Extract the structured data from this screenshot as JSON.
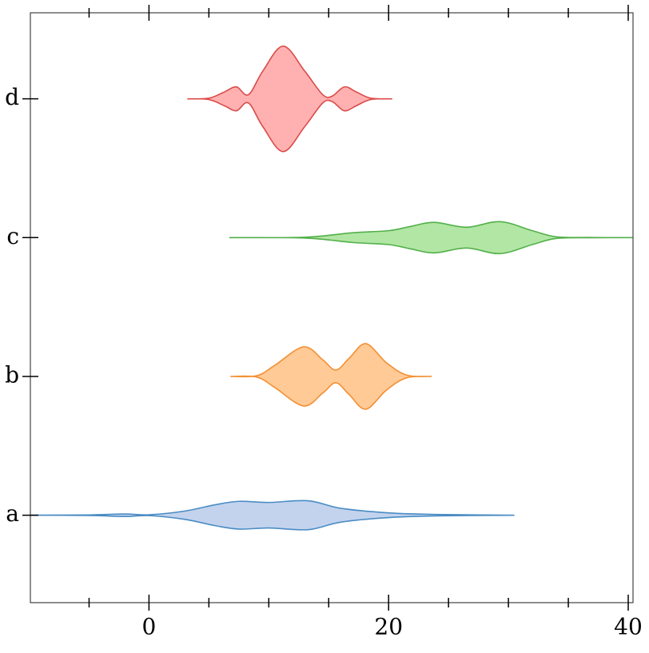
{
  "chart_data": {
    "type": "violin",
    "orientation": "horizontal",
    "categories": [
      "a",
      "b",
      "c",
      "d"
    ],
    "violins": [
      {
        "color": "#c3d3ee",
        "edge": "#4a8cc4",
        "x": [
          -9.9,
          -5,
          -2,
          0,
          3,
          5.5,
          7.5,
          10,
          13.3,
          16,
          20,
          24,
          30.5
        ],
        "widths": [
          0,
          0.002,
          0.009,
          0.003,
          0.03,
          0.075,
          0.1,
          0.092,
          0.104,
          0.05,
          0.017,
          0.005,
          0
        ]
      },
      {
        "color": "#ffca96",
        "edge": "#f39034",
        "x": [
          6.8,
          9,
          10.5,
          12.9,
          14.5,
          15.6,
          16.7,
          18.1,
          19.8,
          21.5,
          23.6
        ],
        "widths": [
          0,
          0.005,
          0.08,
          0.213,
          0.12,
          0.046,
          0.13,
          0.236,
          0.1,
          0.01,
          0
        ]
      },
      {
        "color": "#b2e6a4",
        "edge": "#52b04a",
        "x": [
          6.7,
          13,
          17,
          20,
          21.8,
          23.8,
          26.5,
          29.3,
          32,
          34,
          37,
          40.4
        ],
        "widths": [
          0,
          0.003,
          0.035,
          0.05,
          0.08,
          0.11,
          0.075,
          0.115,
          0.05,
          0.006,
          0.001,
          0
        ]
      },
      {
        "color": "#ffb1b1",
        "edge": "#dc4a4a",
        "x": [
          3.2,
          5,
          6.3,
          7.3,
          8.3,
          9.5,
          11.2,
          13,
          14.5,
          15.3,
          16.3,
          17.3,
          18.5,
          20.3
        ],
        "widths": [
          0,
          0.005,
          0.05,
          0.086,
          0.03,
          0.2,
          0.38,
          0.2,
          0.03,
          0.02,
          0.086,
          0.05,
          0.005,
          0
        ]
      }
    ],
    "xlim": [
      -9.9,
      40.4
    ],
    "xticks": [
      0,
      20,
      40
    ],
    "xminor_ticks": [
      -5,
      5,
      10,
      15,
      25,
      30,
      35
    ],
    "ylim": [
      -0.63,
      3.62
    ]
  }
}
